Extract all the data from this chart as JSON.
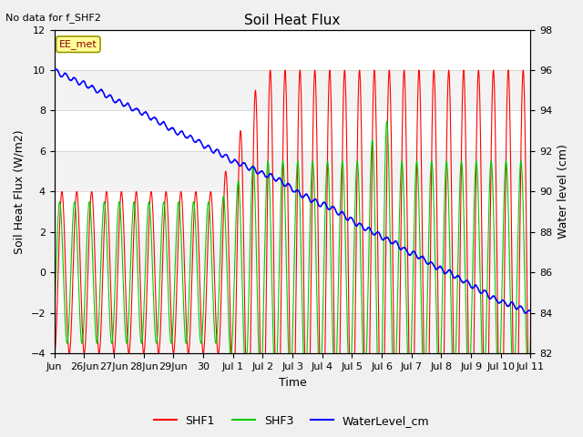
{
  "title": "Soil Heat Flux",
  "top_left_text": "No data for f_SHF2",
  "annotation_text": "EE_met",
  "ylabel_left": "Soil Heat Flux (W/m2)",
  "ylabel_right": "Water level (cm)",
  "xlabel": "Time",
  "ylim_left": [
    -4,
    12
  ],
  "ylim_right": [
    82,
    98
  ],
  "bg_color": "#f0f0f0",
  "plot_bg_color": "#ffffff",
  "shf1_color": "#ff0000",
  "shf3_color": "#00cc00",
  "water_color": "#0000ff",
  "legend_entries": [
    "SHF1",
    "SHF3",
    "WaterLevel_cm"
  ],
  "formatted_labels": [
    "Jun",
    "26Jun",
    "27Jun",
    "28Jun",
    "29Jun",
    "30",
    "Jul 1",
    "Jul 2",
    "Jul 3",
    "Jul 4",
    "Jul 5",
    "Jul 6",
    "Jul 7",
    "Jul 8",
    "Jul 9",
    "Jul 10",
    "Jul 11"
  ],
  "gridcolor": "#cccccc",
  "yticks_left": [
    -4,
    -2,
    0,
    2,
    4,
    6,
    8,
    10,
    12
  ],
  "yticks_right": [
    82,
    84,
    86,
    88,
    90,
    92,
    94,
    96,
    98
  ]
}
